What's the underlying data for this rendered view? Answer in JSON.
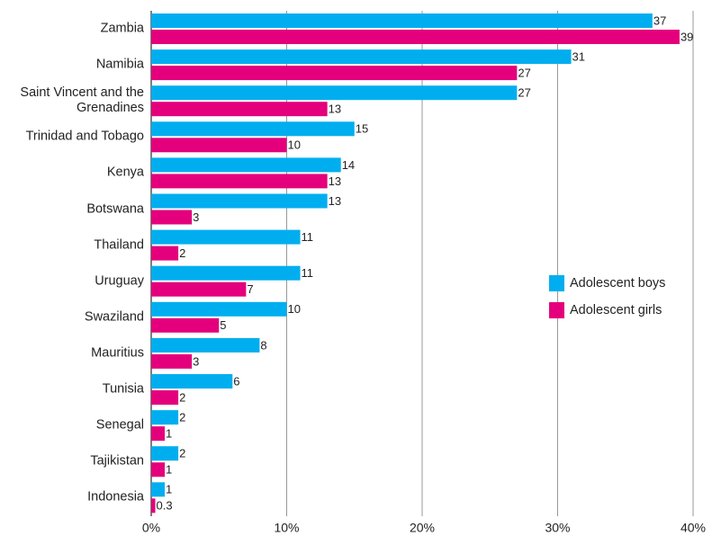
{
  "chart_data": {
    "type": "bar",
    "orientation": "horizontal",
    "categories": [
      "Zambia",
      "Namibia",
      "Saint Vincent and the Grenadines",
      "Trinidad and Tobago",
      "Kenya",
      "Botswana",
      "Thailand",
      "Uruguay",
      "Swaziland",
      "Mauritius",
      "Tunisia",
      "Senegal",
      "Tajikistan",
      "Indonesia"
    ],
    "series": [
      {
        "name": "Adolescent boys",
        "color": "#00aeef",
        "values": [
          37,
          31,
          27,
          15,
          14,
          13,
          11,
          11,
          10,
          8,
          6,
          2,
          2,
          1
        ]
      },
      {
        "name": "Adolescent girls",
        "color": "#e4007c",
        "values": [
          39,
          27,
          13,
          10,
          13,
          3,
          2,
          7,
          5,
          3,
          2,
          1,
          1,
          0.3
        ]
      }
    ],
    "xlim": [
      0,
      40
    ],
    "xticks": [
      {
        "value": 0,
        "label": "0%"
      },
      {
        "value": 10,
        "label": "10%"
      },
      {
        "value": 20,
        "label": "20%"
      },
      {
        "value": 30,
        "label": "30%"
      },
      {
        "value": 40,
        "label": "40%"
      }
    ],
    "grid": true,
    "legend": "right"
  }
}
